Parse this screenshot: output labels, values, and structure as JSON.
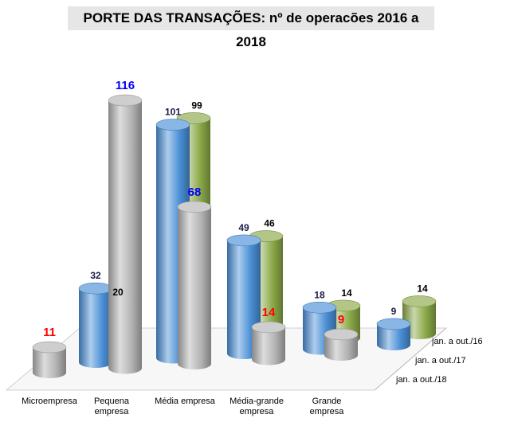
{
  "chart_data": {
    "type": "bar",
    "title": "PORTE DAS TRANSAÇÕES:  nº de operacões 2016 a 2018",
    "categories": [
      "Microempresa",
      "Pequena empresa",
      "Média empresa",
      "Média-grande empresa",
      "Grande empresa"
    ],
    "category_lines": [
      [
        "Microempresa"
      ],
      [
        "Pequena",
        "empresa"
      ],
      [
        "Média empresa"
      ],
      [
        "Média-grande",
        "empresa"
      ],
      [
        "Grande",
        "empresa"
      ]
    ],
    "series": [
      {
        "name": "jan. a out./16",
        "values": [
          20,
          99,
          46,
          14,
          14
        ],
        "color": "#8aa847",
        "label_color": "#000000"
      },
      {
        "name": "jan. a out./17",
        "values": [
          32,
          101,
          49,
          18,
          9
        ],
        "color": "#4a8fd6",
        "label_color": "#1a1a4a"
      },
      {
        "name": "jan. a out./18",
        "values": [
          11,
          116,
          68,
          14,
          9
        ],
        "color": "#a9a9a9",
        "label_color_hex": [
          "#ff0000",
          "#0000ff",
          "#0000ff",
          "#ff0000",
          "#ff0000"
        ]
      }
    ],
    "ylim": [
      0,
      120
    ],
    "grid": false,
    "legend": "right (depth axis)"
  }
}
